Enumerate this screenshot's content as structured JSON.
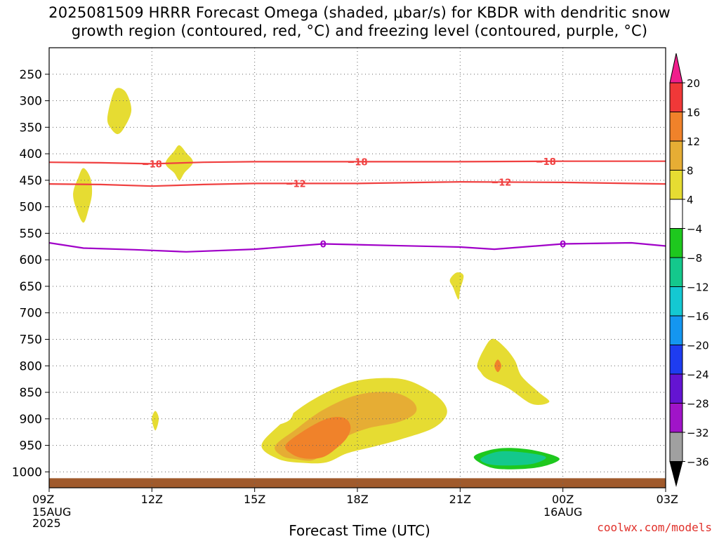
{
  "title": {
    "line1": "2025081509 HRRR Forecast Omega (shaded, μbar/s) for KBDR with dendritic snow",
    "line2": "growth region (contoured, red, °C) and freezing level (contoured, purple, °C)"
  },
  "credit": "coolwx.com/models",
  "chart_data": {
    "type": "heatmap",
    "title": "2025081509 HRRR Forecast Omega (shaded, μbar/s) for KBDR with dendritic snow growth region (contoured, red, °C) and freezing level (contoured, purple, °C)",
    "xlabel": "Forecast Time (UTC)",
    "ylabel": "",
    "x_ticks": [
      {
        "hour": 0,
        "label": "09Z",
        "sub": [
          "15AUG",
          "2025"
        ]
      },
      {
        "hour": 3,
        "label": "12Z",
        "sub": []
      },
      {
        "hour": 6,
        "label": "15Z",
        "sub": []
      },
      {
        "hour": 9,
        "label": "18Z",
        "sub": []
      },
      {
        "hour": 12,
        "label": "21Z",
        "sub": []
      },
      {
        "hour": 15,
        "label": "00Z",
        "sub": [
          "16AUG"
        ]
      },
      {
        "hour": 18,
        "label": "03Z",
        "sub": []
      }
    ],
    "x_range_hours": [
      0,
      18
    ],
    "y_axis": "pressure (hPa), reversed",
    "y_range_hpa": [
      1030,
      200
    ],
    "y_ticks": [
      250,
      300,
      350,
      400,
      450,
      500,
      550,
      600,
      650,
      700,
      750,
      800,
      850,
      900,
      950,
      1000
    ],
    "grid": "dotted",
    "colorbar": {
      "labels": [
        "20",
        "16",
        "12",
        "8",
        "4",
        "−4",
        "−8",
        "−12",
        "−16",
        "−20",
        "−24",
        "−28",
        "−32",
        "−36"
      ],
      "bins": [
        {
          "label": "20",
          "color": "#f01e63"
        },
        {
          "label": "16",
          "color": "#f03838"
        },
        {
          "label": "12",
          "color": "#f0822a"
        },
        {
          "label": "8",
          "color": "#e6ad34"
        },
        {
          "label": "4",
          "color": "#e6dc32"
        },
        {
          "label": "−4",
          "color": "#ffffff"
        },
        {
          "label": "−8",
          "color": "#1ec81e"
        },
        {
          "label": "−12",
          "color": "#14c88c"
        },
        {
          "label": "−16",
          "color": "#14c8d2"
        },
        {
          "label": "−20",
          "color": "#1496f0"
        },
        {
          "label": "−24",
          "color": "#1e3cf0"
        },
        {
          "label": "−28",
          "color": "#6414d2"
        },
        {
          "label": "−32",
          "color": "#a014c8"
        },
        {
          "label": "−36",
          "color": "#a0a0a0"
        }
      ],
      "top_triangle_color": "#f01e8c",
      "bottom_triangle_color": "#000000"
    },
    "contours": [
      {
        "name": "-18",
        "label": "−18",
        "color": "#f04040",
        "points": [
          [
            0,
            416
          ],
          [
            1.5,
            417
          ],
          [
            3,
            419
          ],
          [
            4.5,
            416
          ],
          [
            6,
            415
          ],
          [
            9,
            415
          ],
          [
            12,
            415
          ],
          [
            15,
            414
          ],
          [
            18,
            414
          ]
        ],
        "label_hours": [
          3,
          9,
          14.5
        ]
      },
      {
        "name": "-12",
        "label": "−12",
        "color": "#f04040",
        "points": [
          [
            0,
            457
          ],
          [
            1.5,
            458
          ],
          [
            3,
            461
          ],
          [
            4.5,
            458
          ],
          [
            6,
            456
          ],
          [
            9,
            456
          ],
          [
            12,
            453
          ],
          [
            15,
            454
          ],
          [
            18,
            457
          ]
        ],
        "label_hours": [
          7.2,
          13.2
        ]
      },
      {
        "name": "0",
        "label": "0",
        "color": "#a000c8",
        "points": [
          [
            0,
            568
          ],
          [
            1,
            578
          ],
          [
            2.5,
            581
          ],
          [
            4,
            585
          ],
          [
            6,
            580
          ],
          [
            8,
            570
          ],
          [
            10,
            573
          ],
          [
            12,
            576
          ],
          [
            13,
            580
          ],
          [
            15,
            570
          ],
          [
            17,
            568
          ],
          [
            18,
            574
          ]
        ],
        "label_hours": [
          8,
          15
        ]
      }
    ],
    "omega_regions": [
      {
        "value_bin": "4",
        "points": [
          [
            1.7,
            333
          ],
          [
            1.85,
            290
          ],
          [
            2.0,
            276
          ],
          [
            2.25,
            285
          ],
          [
            2.4,
            318
          ],
          [
            2.2,
            350
          ],
          [
            2.0,
            363
          ],
          [
            1.8,
            352
          ]
        ]
      },
      {
        "value_bin": "4",
        "points": [
          [
            3.4,
            418
          ],
          [
            3.65,
            395
          ],
          [
            3.8,
            384
          ],
          [
            4.0,
            398
          ],
          [
            4.2,
            416
          ],
          [
            3.95,
            436
          ],
          [
            3.8,
            450
          ],
          [
            3.65,
            436
          ]
        ]
      },
      {
        "value_bin": "4",
        "points": [
          [
            0.7,
            475
          ],
          [
            0.85,
            445
          ],
          [
            1.0,
            427
          ],
          [
            1.2,
            445
          ],
          [
            1.25,
            475
          ],
          [
            1.15,
            505
          ],
          [
            1.0,
            530
          ],
          [
            0.8,
            505
          ]
        ]
      },
      {
        "value_bin": "4",
        "points": [
          [
            11.7,
            638
          ],
          [
            11.9,
            624
          ],
          [
            12.1,
            630
          ],
          [
            12.0,
            656
          ],
          [
            11.95,
            675
          ],
          [
            11.8,
            653
          ]
        ]
      },
      {
        "value_bin": "4",
        "points": [
          [
            3.0,
            900
          ],
          [
            3.1,
            885
          ],
          [
            3.2,
            900
          ],
          [
            3.1,
            922
          ]
        ]
      },
      {
        "value_bin": "4",
        "points": [
          [
            12.5,
            798
          ],
          [
            12.7,
            768
          ],
          [
            12.95,
            749
          ],
          [
            13.3,
            765
          ],
          [
            13.6,
            790
          ],
          [
            13.8,
            820
          ],
          [
            14.3,
            850
          ],
          [
            14.6,
            868
          ],
          [
            14.1,
            872
          ],
          [
            13.4,
            842
          ],
          [
            12.8,
            825
          ],
          [
            12.6,
            812
          ]
        ]
      },
      {
        "value_bin": "4",
        "points": [
          [
            6.2,
            951
          ],
          [
            6.7,
            913
          ],
          [
            7.5,
            872
          ],
          [
            8.5,
            838
          ],
          [
            9.3,
            825
          ],
          [
            10.3,
            825
          ],
          [
            11.0,
            843
          ],
          [
            11.5,
            868
          ],
          [
            11.6,
            893
          ],
          [
            11.2,
            918
          ],
          [
            10.3,
            938
          ],
          [
            9.5,
            952
          ],
          [
            8.7,
            965
          ],
          [
            8.1,
            982
          ],
          [
            7.4,
            983
          ],
          [
            6.7,
            976
          ]
        ]
      },
      {
        "value_bin": "8",
        "points": [
          [
            6.6,
            951
          ],
          [
            7.2,
            920
          ],
          [
            8.0,
            883
          ],
          [
            9.0,
            855
          ],
          [
            10.0,
            850
          ],
          [
            10.6,
            866
          ],
          [
            10.7,
            888
          ],
          [
            10.2,
            906
          ],
          [
            9.3,
            918
          ],
          [
            8.6,
            936
          ],
          [
            8.1,
            960
          ],
          [
            7.7,
            978
          ],
          [
            7.2,
            976
          ],
          [
            6.8,
            970
          ]
        ]
      },
      {
        "value_bin": "12",
        "points": [
          [
            6.9,
            950
          ],
          [
            7.4,
            924
          ],
          [
            8.1,
            900
          ],
          [
            8.6,
            898
          ],
          [
            8.8,
            914
          ],
          [
            8.7,
            935
          ],
          [
            8.4,
            955
          ],
          [
            8.0,
            972
          ],
          [
            7.5,
            975
          ],
          [
            7.1,
            967
          ]
        ]
      },
      {
        "value_bin": "12",
        "points": [
          [
            13.0,
            800
          ],
          [
            13.1,
            788
          ],
          [
            13.2,
            800
          ],
          [
            13.1,
            812
          ]
        ]
      },
      {
        "value_bin": "−4",
        "points": [
          [
            4.2,
            944
          ],
          [
            4.8,
            915
          ],
          [
            5.7,
            889
          ],
          [
            6.6,
            870
          ],
          [
            7.1,
            878
          ],
          [
            7.0,
            903
          ],
          [
            6.3,
            918
          ],
          [
            5.6,
            933
          ],
          [
            4.8,
            943
          ]
        ]
      },
      {
        "value_bin": "−4",
        "points": [
          [
            1.2,
            868
          ],
          [
            1.4,
            848
          ],
          [
            1.6,
            868
          ],
          [
            1.4,
            885
          ]
        ]
      },
      {
        "value_bin": "−4",
        "points": [
          [
            9.0,
            1002
          ],
          [
            9.4,
            984
          ],
          [
            9.8,
            990
          ],
          [
            10.1,
            1006
          ],
          [
            9.8,
            1017
          ],
          [
            9.2,
            1017
          ]
        ]
      },
      {
        "value_bin": "−4",
        "points": [
          [
            5.6,
            1015
          ],
          [
            6.1,
            1008
          ],
          [
            6.35,
            1012
          ],
          [
            6.2,
            1020
          ],
          [
            5.7,
            1020
          ]
        ]
      },
      {
        "value_bin": "−4",
        "points": [
          [
            12.4,
            410
          ],
          [
            12.8,
            394
          ],
          [
            13.2,
            402
          ],
          [
            13.4,
            432
          ],
          [
            13.3,
            460
          ],
          [
            13.0,
            488
          ],
          [
            12.8,
            475
          ],
          [
            12.5,
            450
          ]
        ]
      },
      {
        "value_bin": "−4",
        "points": [
          [
            12.1,
            982
          ],
          [
            12.2,
            960
          ],
          [
            12.6,
            943
          ],
          [
            13.4,
            932
          ],
          [
            14.0,
            935
          ],
          [
            14.8,
            945
          ],
          [
            15.5,
            950
          ],
          [
            16.0,
            938
          ],
          [
            16.6,
            938
          ],
          [
            17.0,
            944
          ],
          [
            18.0,
            944
          ],
          [
            18.0,
            1018
          ],
          [
            15.5,
            1020
          ],
          [
            13.0,
            1020
          ],
          [
            12.3,
            1010
          ]
        ]
      },
      {
        "value_bin": "−8",
        "points": [
          [
            12.4,
            973
          ],
          [
            12.8,
            960
          ],
          [
            13.4,
            955
          ],
          [
            14.2,
            960
          ],
          [
            14.9,
            975
          ],
          [
            14.4,
            990
          ],
          [
            13.6,
            995
          ],
          [
            12.9,
            992
          ]
        ]
      },
      {
        "value_bin": "−12",
        "points": [
          [
            12.6,
            975
          ],
          [
            13.1,
            962
          ],
          [
            13.8,
            963
          ],
          [
            14.5,
            972
          ],
          [
            14.1,
            985
          ],
          [
            13.3,
            988
          ],
          [
            12.8,
            985
          ]
        ]
      }
    ],
    "surface_band": {
      "from_hpa": 1012,
      "to_hpa": 1030,
      "color": "#a05a2c"
    }
  }
}
